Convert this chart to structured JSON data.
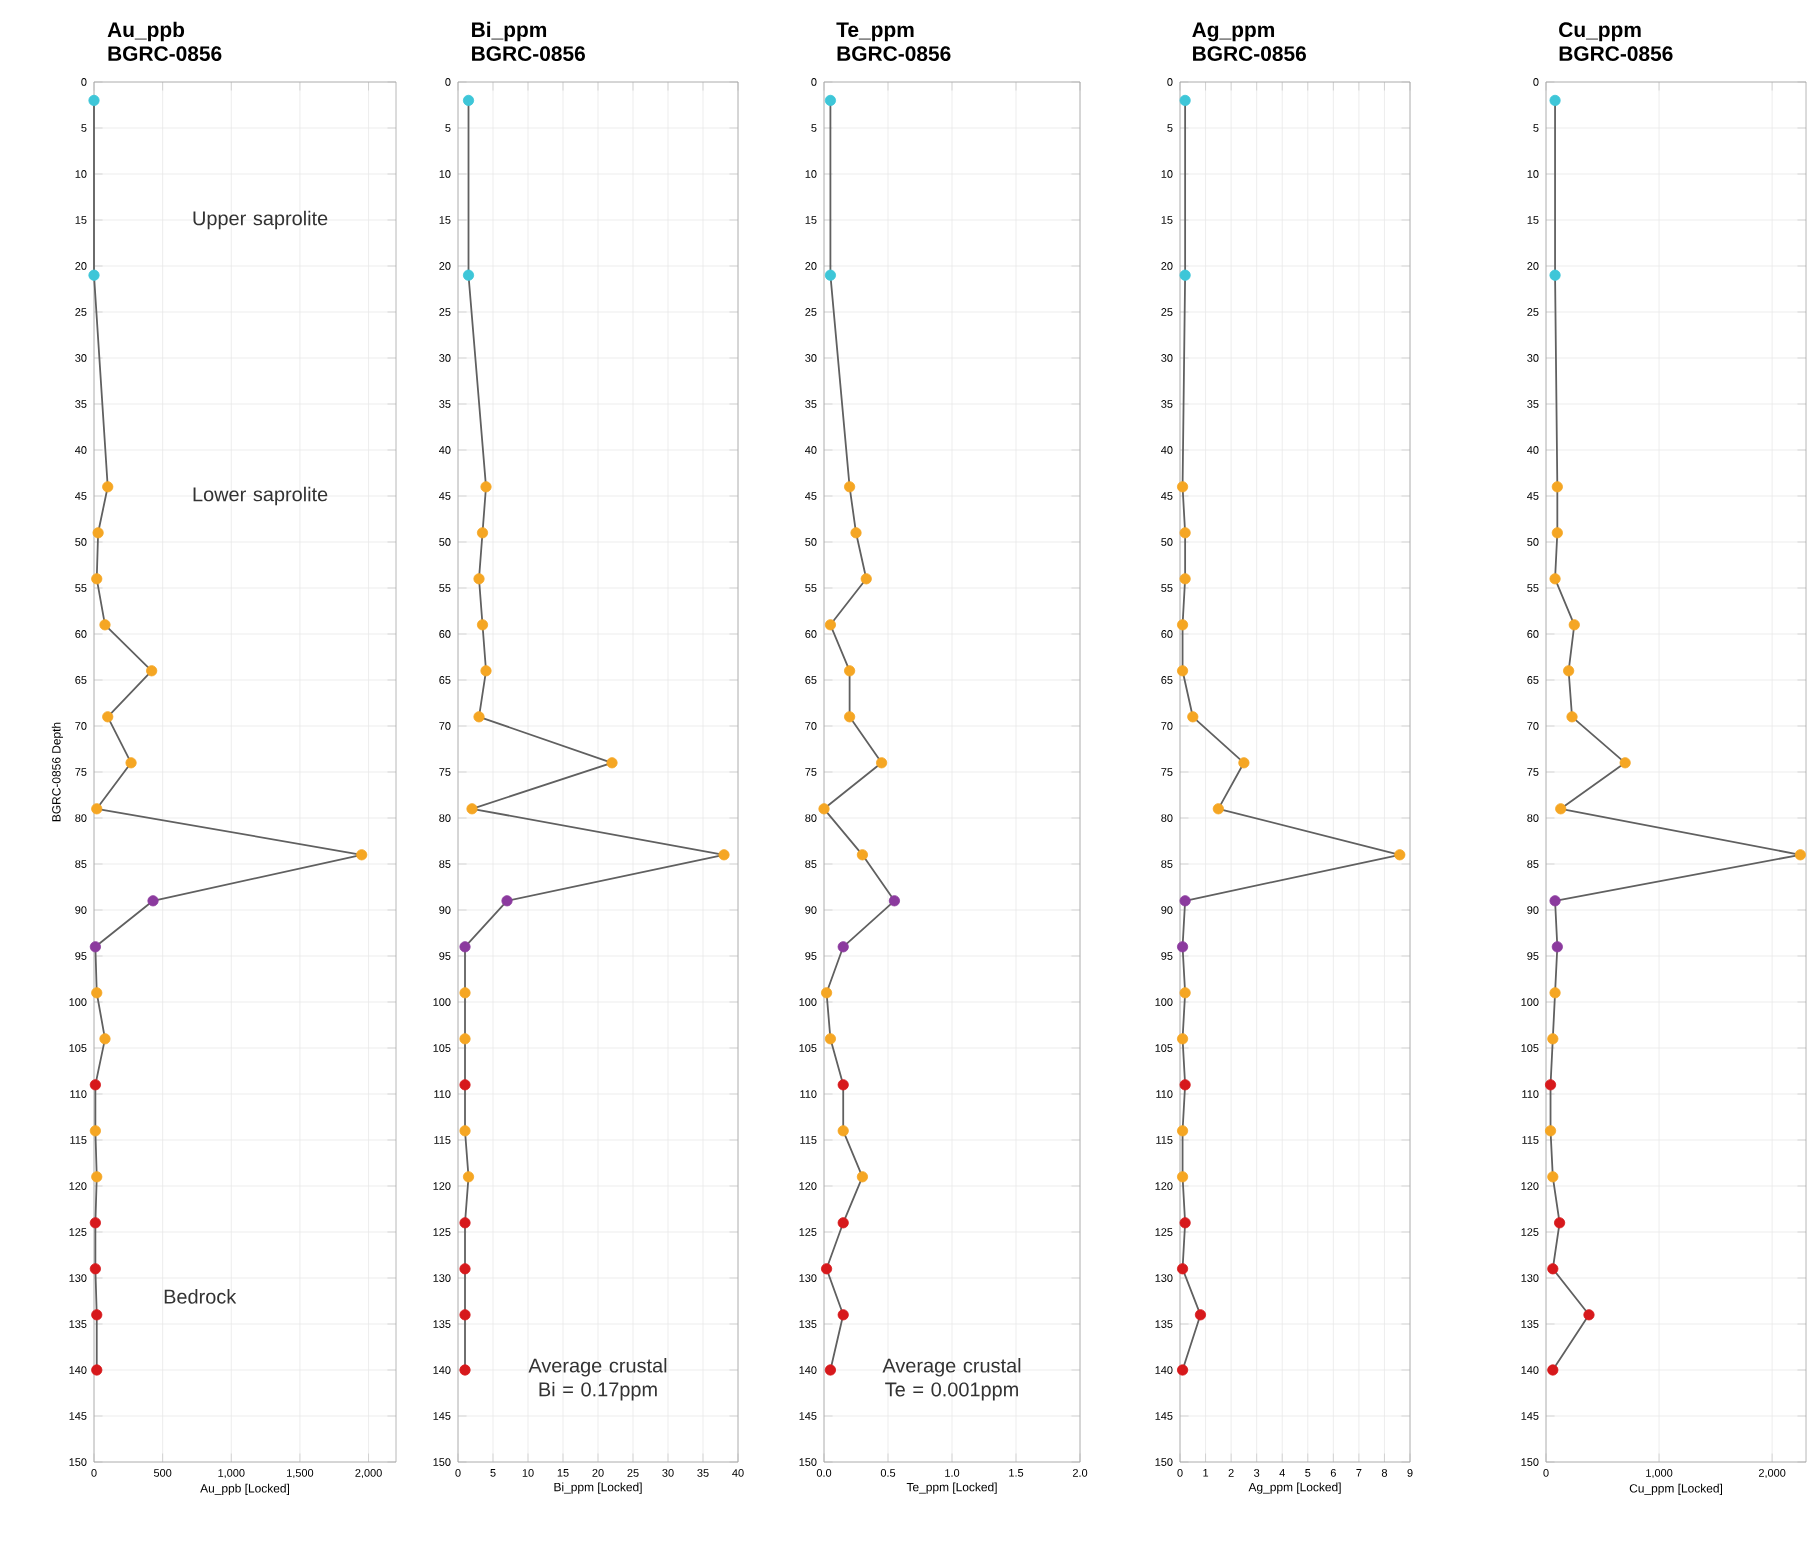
{
  "chart_data": [
    {
      "type": "line",
      "title": "Au_ppb",
      "subtitle": "BGRC-0856",
      "xlabel": "Au_ppb [Locked]",
      "ylabel": "BGRC-0856 Depth",
      "annotations": [
        "Upper saprolite",
        "Lower saprolite",
        "Bedrock"
      ],
      "x": [
        0,
        0,
        100,
        30,
        20,
        80,
        420,
        100,
        270,
        20,
        1950,
        430,
        10,
        20,
        80,
        10,
        10,
        20,
        10,
        10,
        20,
        20
      ],
      "values": [
        2,
        21,
        44,
        49,
        54,
        59,
        64,
        69,
        74,
        79,
        84,
        89,
        94,
        99,
        104,
        109,
        114,
        119,
        124,
        129,
        134,
        140
      ],
      "color": "#606060",
      "colors": [
        "#3ec6d8",
        "#3ec6d8",
        "#f5a623",
        "#f5a623",
        "#f5a623",
        "#f5a623",
        "#f5a623",
        "#f5a623",
        "#f5a623",
        "#f5a623",
        "#f5a623",
        "#8b3a9e",
        "#8b3a9e",
        "#f5a623",
        "#f5a623",
        "#d7191c",
        "#f5a623",
        "#f5a623",
        "#d7191c",
        "#d7191c",
        "#d7191c",
        "#d7191c"
      ],
      "xlim": [
        0,
        2200
      ],
      "xticks": [
        0,
        500,
        {
          "value": 1000,
          "label": "1,000"
        },
        {
          "value": 1500,
          "label": "1,500"
        },
        {
          "value": 2000,
          "label": "2,000"
        }
      ],
      "ylim": [
        150,
        0
      ],
      "yticks": [
        0,
        5,
        10,
        15,
        20,
        25,
        30,
        35,
        40,
        45,
        50,
        55,
        60,
        65,
        70,
        75,
        80,
        85,
        90,
        95,
        100,
        105,
        110,
        115,
        120,
        125,
        130,
        135,
        140,
        145,
        150
      ],
      "grid": true,
      "marker": "circle"
    },
    {
      "type": "line",
      "title": "Bi_ppm",
      "subtitle": "BGRC-0856",
      "xlabel": "Bi_ppm [Locked]",
      "annotations": [
        "Average crustal Bi = 0.17ppm"
      ],
      "x": [
        1.5,
        1.5,
        4,
        3.5,
        3,
        3.5,
        4,
        3,
        22,
        2,
        38,
        7,
        1,
        1,
        1,
        1,
        1,
        1.5,
        1,
        1,
        1,
        1
      ],
      "values": [
        2,
        21,
        44,
        49,
        54,
        59,
        64,
        69,
        74,
        79,
        84,
        89,
        94,
        99,
        104,
        109,
        114,
        119,
        124,
        129,
        134,
        140
      ],
      "color": "#606060",
      "colors": [
        "#3ec6d8",
        "#3ec6d8",
        "#f5a623",
        "#f5a623",
        "#f5a623",
        "#f5a623",
        "#f5a623",
        "#f5a623",
        "#f5a623",
        "#f5a623",
        "#f5a623",
        "#8b3a9e",
        "#8b3a9e",
        "#f5a623",
        "#f5a623",
        "#d7191c",
        "#f5a623",
        "#f5a623",
        "#d7191c",
        "#d7191c",
        "#d7191c",
        "#d7191c"
      ],
      "xlim": [
        0,
        40
      ],
      "xticks": [
        0,
        5,
        10,
        15,
        20,
        25,
        30,
        35,
        40
      ],
      "ylim": [
        150,
        0
      ],
      "yticks": [
        0,
        5,
        10,
        15,
        20,
        25,
        30,
        35,
        40,
        45,
        50,
        55,
        60,
        65,
        70,
        75,
        80,
        85,
        90,
        95,
        100,
        105,
        110,
        115,
        120,
        125,
        130,
        135,
        140,
        145,
        150
      ],
      "grid": true,
      "marker": "circle"
    },
    {
      "type": "line",
      "title": "Te_ppm",
      "subtitle": "BGRC-0856",
      "xlabel": "Te_ppm [Locked]",
      "annotations": [
        "Average crustal Te = 0.001ppm"
      ],
      "x": [
        0.05,
        0.05,
        0.2,
        0.25,
        0.33,
        0.05,
        0.2,
        0.2,
        0.45,
        0,
        0.3,
        0.55,
        0.15,
        0.02,
        0.05,
        0.15,
        0.15,
        0.3,
        0.15,
        0.02,
        0.15,
        0.05
      ],
      "values": [
        2,
        21,
        44,
        49,
        54,
        59,
        64,
        69,
        74,
        79,
        84,
        89,
        94,
        99,
        104,
        109,
        114,
        119,
        124,
        129,
        134,
        140
      ],
      "color": "#606060",
      "colors": [
        "#3ec6d8",
        "#3ec6d8",
        "#f5a623",
        "#f5a623",
        "#f5a623",
        "#f5a623",
        "#f5a623",
        "#f5a623",
        "#f5a623",
        "#f5a623",
        "#f5a623",
        "#8b3a9e",
        "#8b3a9e",
        "#f5a623",
        "#f5a623",
        "#d7191c",
        "#f5a623",
        "#f5a623",
        "#d7191c",
        "#d7191c",
        "#d7191c",
        "#d7191c"
      ],
      "xlim": [
        0,
        2
      ],
      "xticks": [
        {
          "value": 0,
          "label": "0.0"
        },
        0.5,
        {
          "value": 1,
          "label": "1.0"
        },
        1.5,
        {
          "value": 2,
          "label": "2.0"
        }
      ],
      "ylim": [
        150,
        0
      ],
      "yticks": [
        0,
        5,
        10,
        15,
        20,
        25,
        30,
        35,
        40,
        45,
        50,
        55,
        60,
        65,
        70,
        75,
        80,
        85,
        90,
        95,
        100,
        105,
        110,
        115,
        120,
        125,
        130,
        135,
        140,
        145,
        150
      ],
      "grid": true,
      "marker": "circle"
    },
    {
      "type": "line",
      "title": "Ag_ppm",
      "subtitle": "BGRC-0856",
      "xlabel": "Ag_ppm [Locked]",
      "x": [
        0.2,
        0.2,
        0.1,
        0.2,
        0.2,
        0.1,
        0.1,
        0.5,
        2.5,
        1.5,
        8.6,
        0.2,
        0.1,
        0.2,
        0.1,
        0.2,
        0.1,
        0.1,
        0.2,
        0.1,
        0.8,
        0.1
      ],
      "values": [
        2,
        21,
        44,
        49,
        54,
        59,
        64,
        69,
        74,
        79,
        84,
        89,
        94,
        99,
        104,
        109,
        114,
        119,
        124,
        129,
        134,
        140
      ],
      "color": "#606060",
      "colors": [
        "#3ec6d8",
        "#3ec6d8",
        "#f5a623",
        "#f5a623",
        "#f5a623",
        "#f5a623",
        "#f5a623",
        "#f5a623",
        "#f5a623",
        "#f5a623",
        "#f5a623",
        "#8b3a9e",
        "#8b3a9e",
        "#f5a623",
        "#f5a623",
        "#d7191c",
        "#f5a623",
        "#f5a623",
        "#d7191c",
        "#d7191c",
        "#d7191c",
        "#d7191c"
      ],
      "xlim": [
        0,
        9
      ],
      "xticks": [
        0,
        1,
        2,
        3,
        4,
        5,
        6,
        7,
        8,
        9
      ],
      "ylim": [
        150,
        0
      ],
      "yticks": [
        0,
        5,
        10,
        15,
        20,
        25,
        30,
        35,
        40,
        45,
        50,
        55,
        60,
        65,
        70,
        75,
        80,
        85,
        90,
        95,
        100,
        105,
        110,
        115,
        120,
        125,
        130,
        135,
        140,
        145,
        150
      ],
      "grid": true,
      "marker": "circle"
    },
    {
      "type": "line",
      "title": "Cu_ppm",
      "subtitle": "BGRC-0856",
      "xlabel": "Cu_ppm [Locked]",
      "x": [
        80,
        80,
        100,
        100,
        80,
        250,
        200,
        230,
        700,
        130,
        2250,
        80,
        100,
        80,
        60,
        40,
        40,
        60,
        120,
        60,
        380,
        60
      ],
      "values": [
        2,
        21,
        44,
        49,
        54,
        59,
        64,
        69,
        74,
        79,
        84,
        89,
        94,
        99,
        104,
        109,
        114,
        119,
        124,
        129,
        134,
        140
      ],
      "color": "#606060",
      "colors": [
        "#3ec6d8",
        "#3ec6d8",
        "#f5a623",
        "#f5a623",
        "#f5a623",
        "#f5a623",
        "#f5a623",
        "#f5a623",
        "#f5a623",
        "#f5a623",
        "#f5a623",
        "#8b3a9e",
        "#8b3a9e",
        "#f5a623",
        "#f5a623",
        "#d7191c",
        "#f5a623",
        "#f5a623",
        "#d7191c",
        "#d7191c",
        "#d7191c",
        "#d7191c"
      ],
      "xlim": [
        0,
        2300
      ],
      "xticks": [
        0,
        {
          "value": 1000,
          "label": "1,000"
        },
        {
          "value": 2000,
          "label": "2,000"
        }
      ],
      "ylim": [
        150,
        0
      ],
      "yticks": [
        0,
        5,
        10,
        15,
        20,
        25,
        30,
        35,
        40,
        45,
        50,
        55,
        60,
        65,
        70,
        75,
        80,
        85,
        90,
        95,
        100,
        105,
        110,
        115,
        120,
        125,
        130,
        135,
        140,
        145,
        150
      ],
      "grid": true,
      "marker": "circle"
    }
  ]
}
